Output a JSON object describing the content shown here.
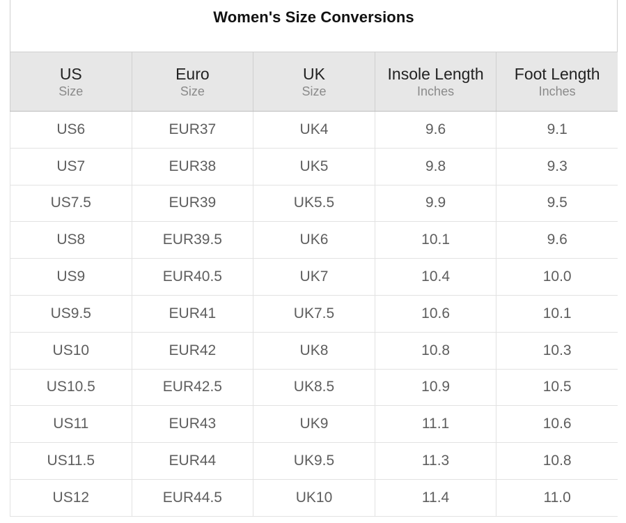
{
  "title": "Women's Size Conversions",
  "headers": [
    {
      "main": "US",
      "sub": "Size"
    },
    {
      "main": "Euro",
      "sub": "Size"
    },
    {
      "main": "UK",
      "sub": "Size"
    },
    {
      "main": "Insole Length",
      "sub": "Inches"
    },
    {
      "main": "Foot Length",
      "sub": "Inches"
    }
  ],
  "rows": [
    [
      "US6",
      "EUR37",
      "UK4",
      "9.6",
      "9.1"
    ],
    [
      "US7",
      "EUR38",
      "UK5",
      "9.8",
      "9.3"
    ],
    [
      "US7.5",
      "EUR39",
      "UK5.5",
      "9.9",
      "9.5"
    ],
    [
      "US8",
      "EUR39.5",
      "UK6",
      "10.1",
      "9.6"
    ],
    [
      "US9",
      "EUR40.5",
      "UK7",
      "10.4",
      "10.0"
    ],
    [
      "US9.5",
      "EUR41",
      "UK7.5",
      "10.6",
      "10.1"
    ],
    [
      "US10",
      "EUR42",
      "UK8",
      "10.8",
      "10.3"
    ],
    [
      "US10.5",
      "EUR42.5",
      "UK8.5",
      "10.9",
      "10.5"
    ],
    [
      "US11",
      "EUR43",
      "UK9",
      "11.1",
      "10.6"
    ],
    [
      "US11.5",
      "EUR44",
      "UK9.5",
      "11.3",
      "10.8"
    ],
    [
      "US12",
      "EUR44.5",
      "UK10",
      "11.4",
      "11.0"
    ]
  ]
}
